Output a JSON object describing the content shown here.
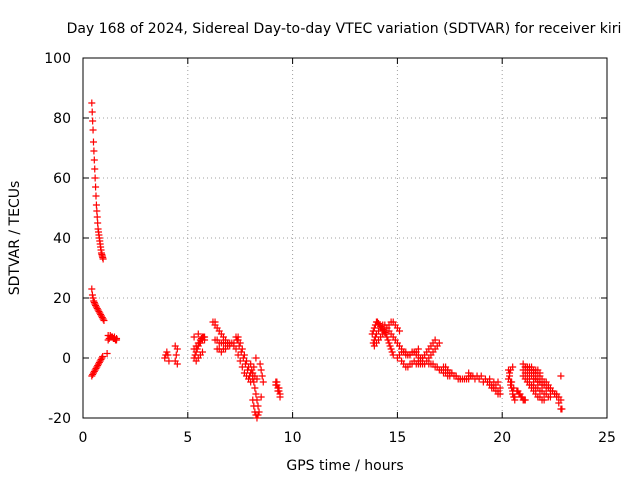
{
  "chart_data": {
    "type": "scatter",
    "title": "Day 168 of 2024, Sidereal Day-to-day VTEC variation (SDTVAR) for receiver kiri",
    "xlabel": "GPS time / hours",
    "ylabel": "SDTVAR / TECUs",
    "xlim": [
      0,
      25
    ],
    "ylim": [
      -20,
      100
    ],
    "xticks": [
      "0",
      "5",
      "10",
      "15",
      "20",
      "25"
    ],
    "yticks": [
      "-20",
      "0",
      "20",
      "40",
      "60",
      "80",
      "100"
    ],
    "grid": true,
    "marker": "plus",
    "color": "#ff0000",
    "series": [
      {
        "name": "SDTVAR",
        "x": [
          0.42,
          0.44,
          0.46,
          0.48,
          0.5,
          0.52,
          0.54,
          0.56,
          0.58,
          0.6,
          0.62,
          0.64,
          0.66,
          0.68,
          0.7,
          0.72,
          0.74,
          0.76,
          0.78,
          0.8,
          0.82,
          0.84,
          0.86,
          0.88,
          0.9,
          0.92,
          0.94,
          0.96,
          0.42,
          0.45,
          0.48,
          0.51,
          0.54,
          0.57,
          0.6,
          0.64,
          0.68,
          0.72,
          0.76,
          0.8,
          0.84,
          0.88,
          0.92,
          0.96,
          1.0,
          0.42,
          0.46,
          0.5,
          0.54,
          0.58,
          0.62,
          0.66,
          0.7,
          0.74,
          0.78,
          0.82,
          0.86,
          0.9,
          0.94,
          1.2,
          1.25,
          1.3,
          1.35,
          1.4,
          1.45,
          1.5,
          1.55,
          1.6,
          1.2,
          1.3,
          1.4,
          1.5,
          1.6,
          1.15,
          3.9,
          3.95,
          4.0,
          4.05,
          4.1,
          4.4,
          4.45,
          4.5,
          4.4,
          4.5,
          5.3,
          5.35,
          5.4,
          5.45,
          5.5,
          5.55,
          5.6,
          5.65,
          5.7,
          5.75,
          5.8,
          5.3,
          5.4,
          5.5,
          5.6,
          5.7,
          5.8,
          5.4,
          5.5,
          5.6,
          5.7,
          5.3,
          5.5,
          6.2,
          6.3,
          6.4,
          6.5,
          6.6,
          6.7,
          6.8,
          6.9,
          7.0,
          6.3,
          6.4,
          6.5,
          6.6,
          6.7,
          6.8,
          6.9,
          7.0,
          7.1,
          7.2,
          6.4,
          6.5,
          6.6,
          6.7,
          6.8,
          6.9,
          6.3,
          7.3,
          7.4,
          7.5,
          7.6,
          7.7,
          7.8,
          7.9,
          8.0,
          7.35,
          7.45,
          7.55,
          7.65,
          7.75,
          7.85,
          7.95,
          7.4,
          7.5,
          7.6,
          7.7,
          7.8,
          7.9,
          8.0,
          8.1,
          7.2,
          7.3,
          7.4,
          8.0,
          8.05,
          8.1,
          8.15,
          8.2,
          8.25,
          8.3,
          8.35,
          8.4,
          8.45,
          8.5,
          8.55,
          8.6,
          8.1,
          8.15,
          8.2,
          8.25,
          8.3,
          8.35,
          8.1,
          8.2,
          8.3,
          8.15,
          8.25,
          8.5,
          9.2,
          9.25,
          9.3,
          9.35,
          9.4,
          9.2,
          9.3,
          9.4,
          9.25,
          9.35,
          13.8,
          13.85,
          13.9,
          13.95,
          14.0,
          14.05,
          14.1,
          14.15,
          14.2,
          14.25,
          14.3,
          14.35,
          14.4,
          14.45,
          14.5,
          14.55,
          14.6,
          14.65,
          14.7,
          14.75,
          14.8,
          13.85,
          13.9,
          13.95,
          14.0,
          14.1,
          14.2,
          14.3,
          14.4,
          14.5,
          14.6,
          14.7,
          14.8,
          14.9,
          15.0,
          15.1,
          15.2,
          13.9,
          14.0,
          14.1,
          14.2,
          14.3,
          14.4,
          14.5,
          14.6,
          14.7,
          14.8,
          14.9,
          15.0,
          15.1,
          15.0,
          15.1,
          15.2,
          15.3,
          15.4,
          15.5,
          15.6,
          15.7,
          15.8,
          15.9,
          16.0,
          15.2,
          15.3,
          15.4,
          15.5,
          15.6,
          15.7,
          15.8,
          15.9,
          16.0,
          16.1,
          15.3,
          15.4,
          15.5,
          15.6,
          15.7,
          15.8,
          15.9,
          16.0,
          16.1,
          16.2,
          16.0,
          16.1,
          16.2,
          16.3,
          16.4,
          16.5,
          16.6,
          16.7,
          16.8,
          16.1,
          16.2,
          16.3,
          16.4,
          16.5,
          16.6,
          16.7,
          16.8,
          16.9,
          17.0,
          16.5,
          16.6,
          16.7,
          16.8,
          16.9,
          17.0,
          17.1,
          17.2,
          17.3,
          17.4,
          17.5,
          17.2,
          17.3,
          17.4,
          17.5,
          17.6,
          17.7,
          17.8,
          17.9,
          18.0,
          18.1,
          18.2,
          18.3,
          18.4,
          18.5,
          17.4,
          17.6,
          17.8,
          18.0,
          18.2,
          18.4,
          18.4,
          18.6,
          18.8,
          19.0,
          19.2,
          19.4,
          19.6,
          19.8,
          18.5,
          18.7,
          18.9,
          19.1,
          19.3,
          19.5,
          19.7,
          19.9,
          19.4,
          19.5,
          19.6,
          19.7,
          19.8,
          19.9,
          19.4,
          19.6,
          19.8,
          20.3,
          20.35,
          20.4,
          20.45,
          20.5,
          20.55,
          20.6,
          20.3,
          20.4,
          20.5,
          20.6,
          20.35,
          20.45,
          20.55,
          20.4,
          20.5,
          20.7,
          20.8,
          20.9,
          21.0,
          21.1,
          20.75,
          20.85,
          20.95,
          21.05,
          21.0,
          21.1,
          21.2,
          21.3,
          21.4,
          21.5,
          21.6,
          21.7,
          21.8,
          21.9,
          22.0,
          22.1,
          22.2,
          22.3,
          22.4,
          22.5,
          22.6,
          22.7,
          22.8,
          21.0,
          21.1,
          21.2,
          21.3,
          21.4,
          21.5,
          21.6,
          21.7,
          21.8,
          21.9,
          22.0,
          22.1,
          22.2,
          22.3,
          21.1,
          21.2,
          21.3,
          21.4,
          21.5,
          21.6,
          21.7,
          21.8,
          21.9,
          22.0,
          22.1,
          22.2,
          22.3,
          22.4,
          22.5,
          22.6,
          22.7,
          22.8,
          21.2,
          21.3,
          21.4,
          21.5,
          21.6,
          21.7,
          21.8,
          21.9,
          22.0,
          21.3,
          21.4,
          21.5,
          21.6,
          21.7,
          21.8,
          21.5,
          21.6,
          21.7,
          21.8,
          21.9,
          21.0,
          21.1,
          21.2,
          21.3,
          21.4,
          21.5,
          22.8,
          22.85
        ],
        "y": [
          85,
          82,
          79,
          76,
          72,
          69,
          66,
          63,
          60,
          57,
          54,
          51,
          49,
          47,
          45,
          43,
          42,
          41,
          40,
          39,
          38,
          37,
          36,
          35,
          34.5,
          34,
          33.5,
          33,
          23,
          21,
          20,
          19,
          18.5,
          18,
          17.5,
          17,
          16.5,
          16,
          15.5,
          15,
          14.5,
          14,
          13.5,
          13,
          12.5,
          -6,
          -5.5,
          -5,
          -4.5,
          -4,
          -3.5,
          -3,
          -2.5,
          -2,
          -1.5,
          -1,
          -0.5,
          0,
          0.5,
          6,
          6.5,
          7,
          7,
          7,
          6.5,
          6.5,
          6,
          6,
          7.5,
          7.5,
          7,
          7,
          6.5,
          1.5,
          0,
          1,
          2,
          1,
          -1,
          -1,
          1,
          3,
          4,
          -2,
          0,
          1,
          2,
          3,
          4,
          5,
          6,
          6.5,
          7,
          7,
          7,
          3,
          4,
          5,
          5,
          6,
          6,
          -1,
          0,
          1,
          2,
          7,
          8,
          12,
          11,
          10,
          9,
          8,
          7,
          6,
          5,
          4,
          6,
          6,
          5,
          5,
          5,
          5,
          5,
          5,
          5,
          5,
          3,
          3,
          2,
          3,
          3,
          4,
          12,
          3,
          1,
          -1,
          -3,
          -5,
          -6,
          -7,
          -8,
          6,
          4,
          2,
          0,
          -2,
          -4,
          -6,
          7,
          5,
          3,
          1,
          -1,
          -3,
          -5,
          -7,
          4,
          7,
          6,
          -2,
          -4,
          -6,
          -8,
          -10,
          -12,
          -14,
          -16,
          -18,
          -2,
          -4,
          -6,
          -8,
          -14,
          -16,
          -18,
          -19,
          -20,
          -19,
          -5,
          -6,
          -7,
          -3,
          0,
          -13,
          -8,
          -9,
          -10,
          -11,
          -12,
          -9,
          -11,
          -13,
          -8,
          -10,
          8,
          9,
          10,
          11,
          12,
          12,
          11.5,
          11,
          10.5,
          10,
          9.5,
          9,
          8.5,
          8,
          7,
          6,
          5,
          4,
          3,
          2,
          1,
          5,
          6,
          7,
          8,
          9,
          10,
          11,
          11,
          10,
          9,
          8,
          7,
          6,
          5,
          4,
          3,
          4,
          5,
          6,
          7,
          8,
          9,
          10,
          11,
          12,
          12,
          11,
          10,
          9,
          0,
          1,
          2,
          2,
          1,
          1,
          1,
          2,
          2,
          2,
          3,
          -1,
          -2,
          -3,
          -3,
          -2,
          -2,
          -1,
          -2,
          -2,
          -2,
          2,
          2,
          1,
          1,
          2,
          2,
          1,
          1,
          0,
          0,
          -1,
          -1,
          0,
          1,
          2,
          3,
          4,
          5,
          6,
          -2,
          -2,
          -2,
          -1,
          0,
          1,
          2,
          3,
          4,
          5,
          -2,
          -2,
          -2,
          -3,
          -3,
          -4,
          -4,
          -5,
          -5,
          -6,
          -6,
          -3,
          -3,
          -4,
          -5,
          -5,
          -6,
          -6,
          -7,
          -7,
          -7,
          -7,
          -7,
          -7,
          -6,
          -4,
          -5,
          -6,
          -7,
          -7,
          -6,
          -5,
          -6,
          -6,
          -6,
          -7,
          -7,
          -8,
          -8,
          -6,
          -7,
          -7,
          -8,
          -8,
          -9,
          -9,
          -10,
          -9,
          -10,
          -10,
          -11,
          -12,
          -12,
          -8,
          -10,
          -11,
          -4,
          -6,
          -8,
          -10,
          -12,
          -13,
          -14,
          -7,
          -9,
          -11,
          -13,
          -5,
          -8,
          -10,
          -4,
          -3,
          -11,
          -12,
          -13,
          -14,
          -14,
          -11,
          -12,
          -13,
          -14,
          -4,
          -5,
          -5,
          -6,
          -6,
          -7,
          -7,
          -8,
          -8,
          -9,
          -9,
          -10,
          -10,
          -11,
          -11,
          -12,
          -12,
          -13,
          -14,
          -6,
          -7,
          -7,
          -8,
          -9,
          -9,
          -10,
          -10,
          -11,
          -11,
          -12,
          -12,
          -13,
          -13,
          -3,
          -3,
          -4,
          -4,
          -5,
          -5,
          -6,
          -6,
          -7,
          -8,
          -8,
          -9,
          -10,
          -11,
          -12,
          -13,
          -15,
          -17,
          -8,
          -9,
          -10,
          -11,
          -12,
          -13,
          -13,
          -14,
          -14,
          -3,
          -3,
          -4,
          -4,
          -4,
          -5,
          -7,
          -7,
          -8,
          -8,
          -9,
          -2,
          -3,
          -3,
          -4,
          -4,
          -5,
          -6,
          -17
        ]
      }
    ]
  }
}
